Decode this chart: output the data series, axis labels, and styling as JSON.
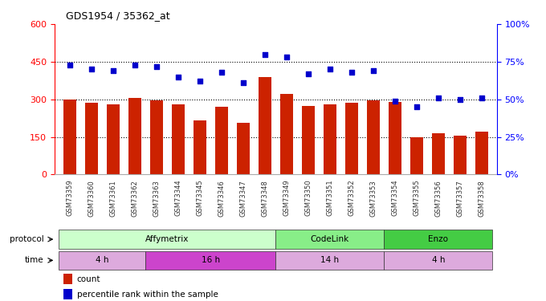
{
  "title": "GDS1954 / 35362_at",
  "samples": [
    "GSM73359",
    "GSM73360",
    "GSM73361",
    "GSM73362",
    "GSM73363",
    "GSM73344",
    "GSM73345",
    "GSM73346",
    "GSM73347",
    "GSM73348",
    "GSM73349",
    "GSM73350",
    "GSM73351",
    "GSM73352",
    "GSM73353",
    "GSM73354",
    "GSM73355",
    "GSM73356",
    "GSM73357",
    "GSM73358"
  ],
  "counts": [
    300,
    285,
    280,
    305,
    295,
    280,
    215,
    270,
    205,
    390,
    320,
    275,
    280,
    285,
    295,
    290,
    150,
    165,
    155,
    170
  ],
  "percentiles": [
    73,
    70,
    69,
    73,
    72,
    65,
    62,
    68,
    61,
    80,
    78,
    67,
    70,
    68,
    69,
    49,
    45,
    51,
    50,
    51
  ],
  "bar_color": "#cc2200",
  "dot_color": "#0000cc",
  "left_ylim": [
    0,
    600
  ],
  "right_ylim": [
    0,
    100
  ],
  "left_yticks": [
    0,
    150,
    300,
    450,
    600
  ],
  "right_yticks": [
    0,
    25,
    50,
    75,
    100
  ],
  "right_yticklabels": [
    "0%",
    "25%",
    "50%",
    "75%",
    "100%"
  ],
  "hlines": [
    150,
    300,
    450
  ],
  "bg_color": "#ffffff",
  "protocol_groups": [
    {
      "label": "Affymetrix",
      "start": 0,
      "end": 9,
      "color": "#ccffcc"
    },
    {
      "label": "CodeLink",
      "start": 10,
      "end": 14,
      "color": "#88ee88"
    },
    {
      "label": "Enzo",
      "start": 15,
      "end": 19,
      "color": "#44cc44"
    }
  ],
  "time_groups": [
    {
      "label": "4 h",
      "start": 0,
      "end": 3,
      "color": "#ddaadd"
    },
    {
      "label": "16 h",
      "start": 4,
      "end": 9,
      "color": "#cc44cc"
    },
    {
      "label": "14 h",
      "start": 10,
      "end": 14,
      "color": "#ddaadd"
    },
    {
      "label": "4 h",
      "start": 15,
      "end": 19,
      "color": "#ddaadd"
    }
  ],
  "legend_items": [
    {
      "color": "#cc2200",
      "label": "count"
    },
    {
      "color": "#0000cc",
      "label": "percentile rank within the sample"
    }
  ]
}
